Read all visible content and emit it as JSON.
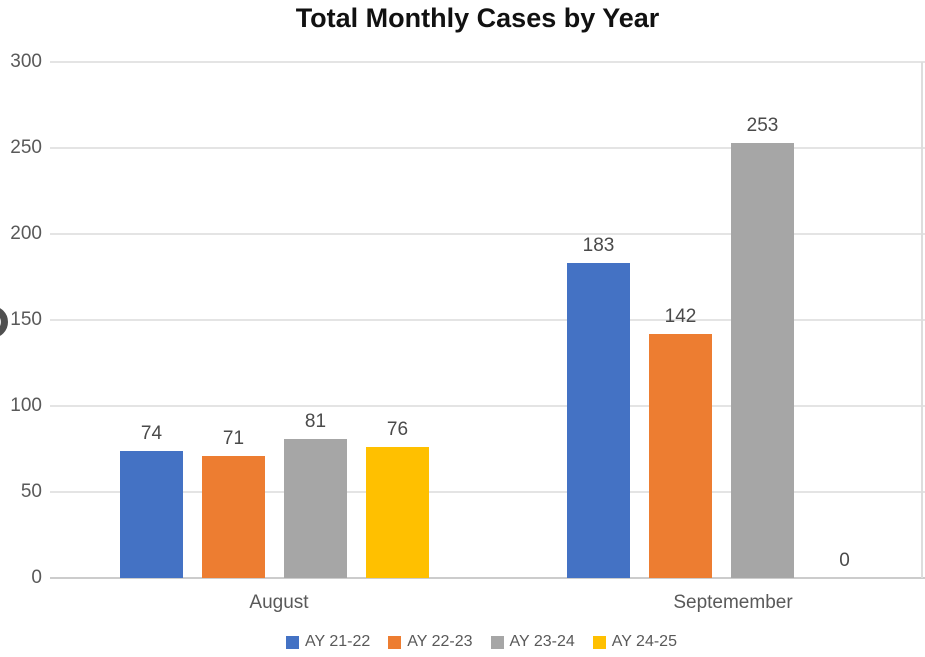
{
  "chart_data": {
    "type": "bar",
    "title": "Total Monthly Cases by Year",
    "categories": [
      "August",
      "Septemember"
    ],
    "series": [
      {
        "name": "AY 21-22",
        "color": "#4472C4",
        "values": [
          74,
          183
        ]
      },
      {
        "name": "AY 22-23",
        "color": "#ED7D31",
        "values": [
          71,
          142
        ]
      },
      {
        "name": "AY 23-24",
        "color": "#A6A6A6",
        "values": [
          81,
          253
        ]
      },
      {
        "name": "AY 24-25",
        "color": "#FFC000",
        "values": [
          76,
          0
        ]
      }
    ],
    "y_axis": {
      "min": 0,
      "max": 300,
      "ticks": [
        0,
        50,
        100,
        150,
        200,
        250,
        300
      ]
    },
    "grid": true,
    "legend_position": "bottom",
    "data_labels": true,
    "colors": {
      "gridline": "#e4e4e4",
      "axis_line": "#cccccc",
      "tick_text": "#595959",
      "label_text": "#4a4a4a",
      "title_text": "#111111"
    }
  }
}
